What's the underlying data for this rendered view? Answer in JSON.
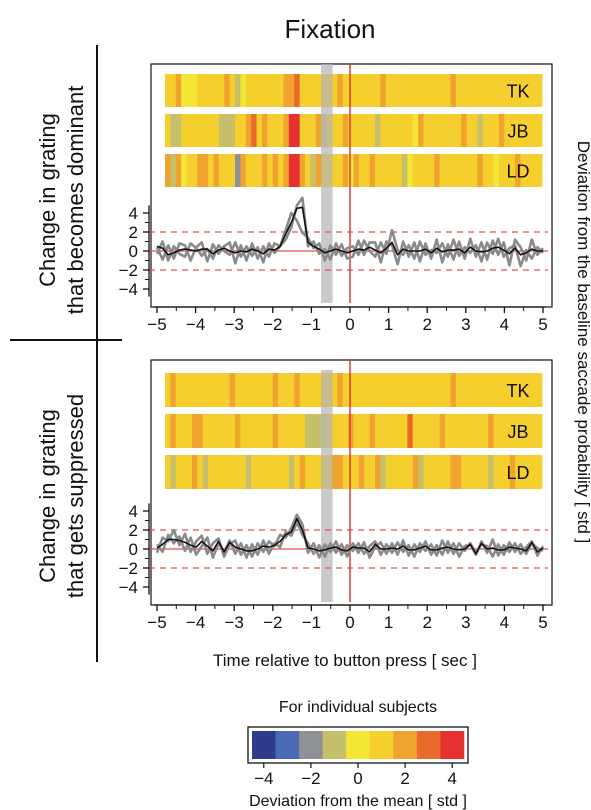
{
  "figure": {
    "title": "Fixation",
    "row_labels": [
      [
        "Change in grating",
        "that becomes dominant"
      ],
      [
        "Change in grating",
        "that gets suppressed"
      ]
    ],
    "right_axis_label": "Deviation from the baseline saccade probability [ std ]",
    "xlabel": "Time relative to button press [ sec ]",
    "colorbar": {
      "title": "For individual subjects",
      "label": "Deviation from the mean [ std ]",
      "ticks": [
        "−4",
        "−2",
        "0",
        "2",
        "4"
      ],
      "colors": [
        "#2e3a8c",
        "#4a6ab4",
        "#8e9196",
        "#c6c06a",
        "#f4e634",
        "#f4cf2e",
        "#f0a32e",
        "#ea6a2d",
        "#e5312f"
      ]
    }
  },
  "chart_data": [
    {
      "type": "heatmap",
      "panel": "Change in grating that becomes dominant",
      "subjects": [
        "TK",
        "JB",
        "LD"
      ],
      "x_range": [
        -5,
        5
      ],
      "color_range": [
        -4,
        4
      ],
      "strip_levels_note": "per-bin color levels 0..8",
      "strips": [
        [
          5,
          5,
          6,
          4,
          4,
          4,
          5,
          5,
          5,
          5,
          5,
          6,
          5,
          3,
          4,
          5,
          5,
          5,
          5,
          5,
          5,
          5,
          6,
          6,
          7,
          5,
          5,
          5,
          5,
          5,
          5,
          5,
          6,
          5,
          5,
          5,
          5,
          5,
          5,
          5,
          6,
          5,
          5,
          5,
          5,
          5,
          5,
          5,
          5,
          5,
          5,
          5,
          5,
          6,
          5,
          5,
          5,
          5,
          5,
          5,
          5,
          5,
          5,
          5,
          5,
          5,
          5,
          5,
          5,
          5
        ],
        [
          5,
          3,
          3,
          5,
          5,
          5,
          5,
          5,
          5,
          5,
          3,
          3,
          3,
          5,
          5,
          6,
          7,
          5,
          6,
          5,
          5,
          5,
          6,
          8,
          8,
          5,
          5,
          5,
          6,
          3,
          5,
          5,
          5,
          6,
          5,
          5,
          5,
          5,
          5,
          3,
          5,
          5,
          5,
          5,
          5,
          5,
          4,
          6,
          5,
          5,
          5,
          5,
          5,
          5,
          5,
          6,
          5,
          5,
          3,
          5,
          5,
          5,
          6,
          5,
          5,
          5,
          5,
          5,
          5,
          5
        ],
        [
          6,
          3,
          6,
          4,
          5,
          5,
          6,
          6,
          5,
          6,
          5,
          5,
          5,
          2,
          6,
          5,
          5,
          5,
          6,
          5,
          6,
          5,
          6,
          8,
          8,
          6,
          5,
          3,
          6,
          5,
          5,
          5,
          5,
          6,
          4,
          6,
          5,
          5,
          6,
          5,
          5,
          5,
          5,
          5,
          3,
          4,
          5,
          5,
          5,
          5,
          6,
          5,
          5,
          5,
          5,
          5,
          5,
          5,
          6,
          5,
          5,
          4,
          5,
          5,
          5,
          6,
          5,
          5,
          5,
          5
        ]
      ]
    },
    {
      "type": "line",
      "panel": "Change in grating that becomes dominant",
      "x_range": [
        -5,
        5
      ],
      "ylim": [
        -5.5,
        6
      ],
      "yticks": [
        4,
        2,
        0,
        -2,
        -4
      ],
      "xticks": [
        -5,
        -4,
        -3,
        -2,
        -1,
        0,
        1,
        2,
        3,
        4,
        5
      ],
      "reference_lines": [
        2,
        -2
      ],
      "series": [
        {
          "values": [
            -0.3,
            1.0,
            -1.0,
            0.5,
            -0.3,
            -0.6,
            0.8,
            0.3,
            -0.5,
            0.2,
            -0.8,
            0.6,
            0.0,
            -0.4,
            0.9,
            -0.6,
            0.5,
            -0.5,
            0.4,
            -1.2,
            0.8,
            -0.2,
            0.5,
            1.2,
            2.5,
            4.8,
            5.6,
            0.5,
            1.0,
            -0.3,
            0.2,
            -0.9,
            0.8,
            -0.5,
            0.3,
            0.5,
            -0.4,
            1.1,
            0.0,
            -0.6,
            0.9,
            -0.3,
            2.2,
            0.1,
            -0.4,
            0.6,
            -0.8,
            1.0,
            -0.4,
            0.1,
            -0.2,
            0.8,
            -0.6,
            1.2,
            -0.5,
            0.4,
            -0.2,
            0.6,
            -1.1,
            0.9,
            -0.3,
            1.3,
            -0.6,
            0.3,
            0.6,
            -1.6,
            0.1,
            -0.8,
            0.4,
            -0.2
          ]
        },
        {
          "values": [
            0.4,
            -0.9,
            0.6,
            -0.8,
            0.8,
            0.6,
            -1.0,
            0.4,
            0.9,
            -1.1,
            0.7,
            -0.3,
            0.5,
            0.9,
            -1.3,
            0.6,
            -1.0,
            0.8,
            -0.8,
            0.5,
            -0.6,
            0.8,
            0.5,
            2.2,
            4.0,
            3.2,
            1.9,
            1.4,
            0.3,
            0.8,
            -1.0,
            0.6,
            -0.4,
            0.7,
            -0.8,
            -0.6,
            1.1,
            -0.4,
            0.9,
            0.9,
            -1.2,
            1.0,
            0.6,
            -1.4,
            1.0,
            -0.6,
            0.9,
            -1.1,
            0.8,
            -0.8,
            1.2,
            -1.2,
            0.7,
            -0.9,
            1.0,
            -0.8,
            1.3,
            -0.6,
            0.9,
            -0.9,
            1.1,
            -0.4,
            0.9,
            -1.5,
            1.2,
            0.4,
            -1.0,
            1.2,
            -0.4,
            0.3
          ]
        },
        {
          "values": [
            0.5,
            0.3,
            -0.4,
            -0.2,
            0.1,
            0.2,
            0.1,
            0.0,
            0.2,
            0.2,
            -0.3,
            0.1,
            0.3,
            0.0,
            -0.2,
            0.0,
            -0.1,
            0.2,
            0.0,
            -0.3,
            0.2,
            0.1,
            0.5,
            1.8,
            3.0,
            4.5,
            4.6,
            0.9,
            0.5,
            0.2,
            -0.2,
            0.0,
            0.2,
            0.0,
            -0.2,
            0.0,
            0.2,
            0.1,
            0.4,
            0.1,
            -0.2,
            0.3,
            0.9,
            -0.4,
            0.2,
            0.0,
            0.0,
            0.0,
            0.2,
            -0.2,
            0.3,
            -0.1,
            0.1,
            0.1,
            0.2,
            -0.2,
            0.4,
            0.0,
            -0.1,
            0.0,
            0.3,
            0.4,
            0.1,
            -0.3,
            0.3,
            -0.4,
            -0.2,
            0.2,
            0.0,
            0.0
          ]
        }
      ]
    },
    {
      "type": "heatmap",
      "panel": "Change in grating that gets suppressed",
      "subjects": [
        "TK",
        "JB",
        "LD"
      ],
      "x_range": [
        -5,
        5
      ],
      "color_range": [
        -4,
        4
      ],
      "strips": [
        [
          5,
          6,
          5,
          5,
          5,
          5,
          5,
          5,
          5,
          5,
          5,
          5,
          6,
          5,
          5,
          5,
          5,
          5,
          5,
          5,
          6,
          5,
          5,
          5,
          6,
          5,
          5,
          5,
          5,
          5,
          5,
          5,
          6,
          5,
          5,
          5,
          5,
          5,
          5,
          5,
          5,
          5,
          5,
          5,
          5,
          5,
          5,
          5,
          5,
          5,
          5,
          5,
          5,
          6,
          5,
          5,
          5,
          5,
          5,
          5,
          5,
          5,
          5,
          5,
          5,
          5,
          5,
          5,
          5,
          5
        ],
        [
          5,
          6,
          5,
          5,
          5,
          6,
          6,
          5,
          5,
          5,
          5,
          5,
          5,
          6,
          5,
          5,
          5,
          5,
          5,
          5,
          6,
          5,
          5,
          5,
          5,
          5,
          3,
          3,
          3,
          3,
          5,
          5,
          5,
          5,
          6,
          5,
          5,
          5,
          6,
          5,
          5,
          5,
          5,
          5,
          5,
          7,
          5,
          5,
          5,
          5,
          5,
          6,
          5,
          5,
          5,
          5,
          5,
          5,
          5,
          5,
          6,
          5,
          5,
          5,
          5,
          5,
          5,
          5,
          5,
          5
        ],
        [
          5,
          3,
          5,
          5,
          5,
          6,
          5,
          3,
          5,
          5,
          5,
          5,
          5,
          5,
          5,
          3,
          5,
          5,
          5,
          5,
          5,
          5,
          5,
          3,
          5,
          6,
          5,
          5,
          5,
          5,
          5,
          6,
          6,
          5,
          5,
          5,
          6,
          5,
          5,
          6,
          3,
          5,
          5,
          5,
          5,
          5,
          6,
          3,
          5,
          5,
          5,
          5,
          5,
          6,
          6,
          5,
          5,
          5,
          5,
          5,
          3,
          5,
          5,
          5,
          6,
          5,
          5,
          5,
          5,
          5
        ]
      ]
    },
    {
      "type": "line",
      "panel": "Change in grating that gets suppressed",
      "x_range": [
        -5,
        5
      ],
      "ylim": [
        -5.5,
        6
      ],
      "yticks": [
        4,
        2,
        0,
        -2,
        -4
      ],
      "xticks": [
        -5,
        -4,
        -3,
        -2,
        -1,
        0,
        1,
        2,
        3,
        4,
        5
      ],
      "reference_lines": [
        2,
        -2
      ],
      "series": [
        {
          "values": [
            -0.4,
            1.2,
            0.8,
            2.0,
            0.4,
            1.6,
            -0.3,
            0.8,
            1.4,
            -0.5,
            0.6,
            1.1,
            -0.8,
            0.5,
            0.9,
            -0.6,
            0.4,
            -0.8,
            0.6,
            -0.3,
            0.8,
            0.3,
            1.5,
            1.2,
            2.2,
            3.6,
            2.6,
            -0.4,
            0.6,
            -0.9,
            0.5,
            -0.3,
            0.8,
            -0.6,
            0.4,
            -0.2,
            0.6,
            -0.5,
            0.3,
            0.8,
            -0.6,
            0.5,
            -0.4,
            0.7,
            -0.3,
            0.4,
            -0.8,
            0.6,
            -0.2,
            0.5,
            -0.7,
            0.9,
            -0.4,
            0.6,
            -0.8,
            0.3,
            0.5,
            -0.6,
            0.8,
            -0.4,
            1.0,
            -0.7,
            0.4,
            -0.3,
            0.6,
            -0.5,
            0.2,
            0.8,
            -0.7,
            0.3
          ]
        },
        {
          "values": [
            0.5,
            -0.3,
            1.5,
            0.6,
            1.3,
            -0.2,
            1.2,
            -0.6,
            0.3,
            1.2,
            -0.9,
            0.6,
            -0.3,
            0.9,
            -0.5,
            0.6,
            -0.9,
            0.5,
            -0.6,
            0.9,
            -0.5,
            0.6,
            0.2,
            1.8,
            1.4,
            2.8,
            1.5,
            0.6,
            -0.5,
            0.4,
            -0.8,
            0.6,
            -0.4,
            0.5,
            -0.8,
            0.6,
            -0.4,
            0.7,
            -0.9,
            0.2,
            0.7,
            -0.5,
            0.6,
            -0.6,
            0.9,
            -0.7,
            0.5,
            -0.3,
            0.8,
            -0.6,
            0.4,
            -0.6,
            0.8,
            -0.5,
            0.6,
            -0.2,
            0.6,
            -0.4,
            0.5,
            0.3,
            -0.8,
            0.5,
            -0.6,
            0.7,
            -0.3,
            0.5,
            -0.5,
            0.6,
            0.1,
            -0.2
          ]
        },
        {
          "values": [
            0.1,
            0.5,
            1.0,
            1.0,
            0.9,
            0.7,
            0.4,
            0.2,
            0.8,
            0.3,
            -0.2,
            0.8,
            -0.3,
            0.7,
            0.2,
            0.0,
            -0.2,
            -0.2,
            0.0,
            0.3,
            0.2,
            0.4,
            0.8,
            1.5,
            1.8,
            3.2,
            2.0,
            0.1,
            0.0,
            -0.2,
            -0.1,
            0.1,
            0.2,
            -0.1,
            -0.2,
            0.2,
            0.1,
            0.1,
            -0.3,
            0.5,
            0.0,
            0.0,
            0.1,
            0.0,
            0.3,
            -0.1,
            -0.1,
            0.1,
            0.3,
            -0.1,
            -0.1,
            0.1,
            0.2,
            0.0,
            -0.1,
            0.0,
            0.5,
            -0.5,
            0.6,
            0.0,
            0.1,
            -0.1,
            -0.1,
            0.2,
            0.1,
            0.0,
            -0.2,
            0.7,
            -0.3,
            0.1
          ]
        }
      ]
    }
  ]
}
